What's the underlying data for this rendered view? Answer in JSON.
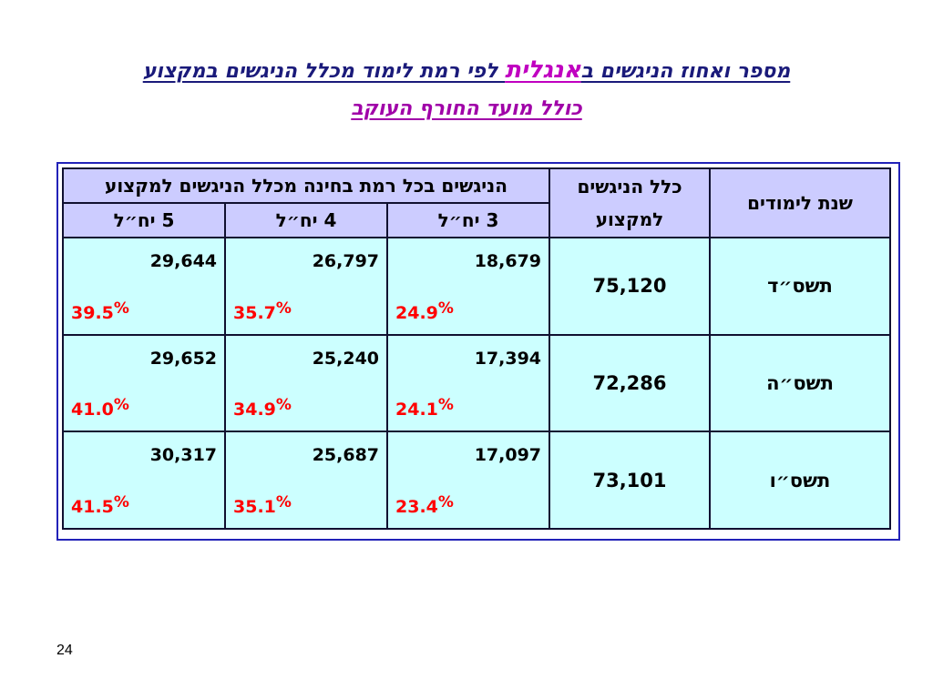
{
  "title": {
    "line1_part1": "מספר ואחוז הניגשים ב",
    "line1_accent": "אנגלית",
    "line1_part2": " לפי רמת לימוד מכלל הניגשים במקצוע",
    "line2": "כולל מועד החורף העוקב"
  },
  "table": {
    "headers": {
      "year": "שנת לימודים",
      "total": "כלל הניגשים למקצוע",
      "group": "הניגשים בכל רמת בחינה מכלל הניגשים למקצוע",
      "level3": "3 יח״ל",
      "level4": "4 יח״ל",
      "level5": "5 יח״ל"
    },
    "rows": [
      {
        "year": "תשס״ד",
        "total": "75,120",
        "l3": {
          "n": "18,679",
          "p": "24.9",
          "pct": "%"
        },
        "l4": {
          "n": "26,797",
          "p": "35.7",
          "pct": "%"
        },
        "l5": {
          "n": "29,644",
          "p": "39.5",
          "pct": "%"
        }
      },
      {
        "year": "תשס״ה",
        "total": "72,286",
        "l3": {
          "n": "17,394",
          "p": "24.1",
          "pct": "%"
        },
        "l4": {
          "n": "25,240",
          "p": "34.9",
          "pct": "%"
        },
        "l5": {
          "n": "29,652",
          "p": "41.0",
          "pct": "%"
        }
      },
      {
        "year": "תשס״ו",
        "total": "73,101",
        "l3": {
          "n": "17,097",
          "p": "23.4",
          "pct": "%"
        },
        "l4": {
          "n": "25,687",
          "p": "35.1",
          "pct": "%"
        },
        "l5": {
          "n": "30,317",
          "p": "41.5",
          "pct": "%"
        }
      }
    ]
  },
  "page_number": "24",
  "colors": {
    "header_bg": "#ccccff",
    "body_bg": "#ccffff",
    "frame": "#2222b8",
    "percent": "#ff0000",
    "title_accent": "#c000c0"
  }
}
